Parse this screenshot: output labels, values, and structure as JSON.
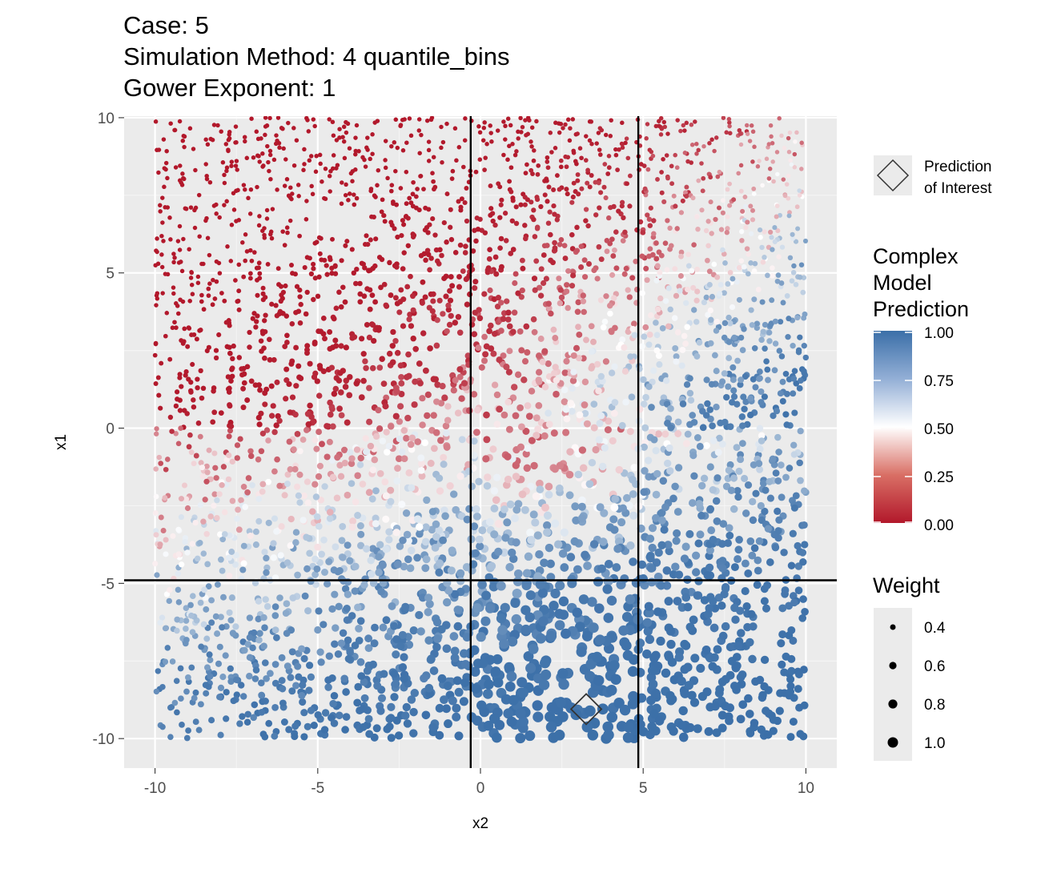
{
  "chart_data": {
    "type": "scatter",
    "title_lines": [
      "Case: 5",
      "Simulation Method: 4 quantile_bins",
      "Gower Exponent: 1"
    ],
    "xlabel": "x2",
    "ylabel": "x1",
    "xlim": [
      -10.95,
      10.95
    ],
    "ylim": [
      -10.95,
      10.05
    ],
    "x_ticks": [
      -10,
      -5,
      0,
      5,
      10
    ],
    "y_ticks": [
      10,
      5,
      0,
      -5,
      -10
    ],
    "x_tick_labels": [
      "-10",
      "-5",
      "0",
      "5",
      "10"
    ],
    "y_tick_labels": [
      "10",
      "5",
      "0",
      "-5",
      "-10"
    ],
    "grid": true,
    "reference_lines": {
      "vertical_x": [
        -0.3,
        4.85
      ],
      "horizontal_y": [
        -4.9
      ]
    },
    "prediction_of_interest": {
      "x2": 3.25,
      "x1": -9.05
    },
    "point_count_approx": 4000,
    "color_scale": {
      "low": "#B2182B",
      "mid": "#FFFFFF",
      "high": "#3B6FA8",
      "midpoint": 0.5
    },
    "legend": {
      "shape_label_lines": [
        "Prediction",
        "of Interest"
      ],
      "color_title_lines": [
        "Complex",
        "Model",
        "Prediction"
      ],
      "color_breaks": [
        "1.00",
        "0.75",
        "0.50",
        "0.25",
        "0.00"
      ],
      "size_title": "Weight",
      "size_breaks": [
        "0.4",
        "0.6",
        "0.8",
        "1.0"
      ]
    }
  }
}
